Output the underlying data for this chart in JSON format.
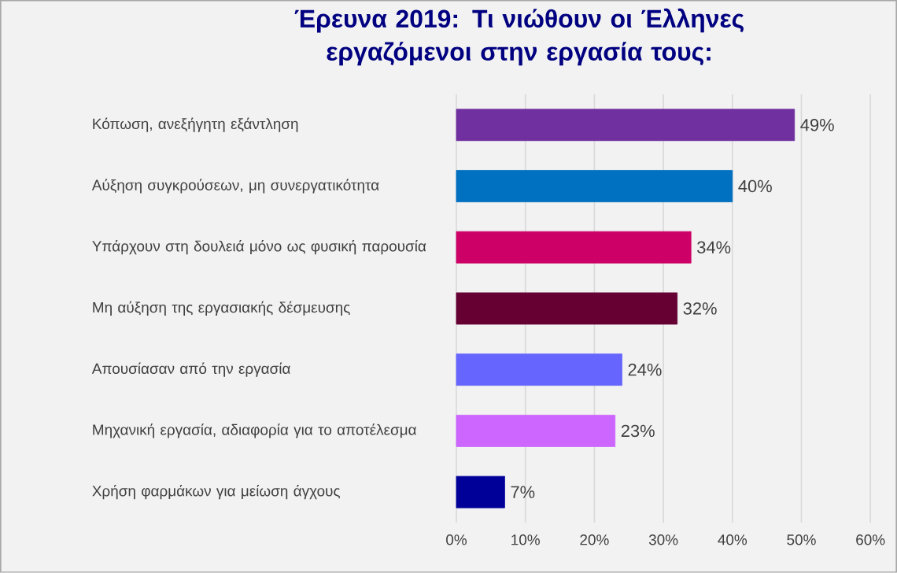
{
  "chart_data": {
    "type": "bar",
    "orientation": "horizontal",
    "title": "Έρευνα 2019:  Τι νιώθουν οι  Έλληνες εργαζόμενοι  στην εργασία τους:",
    "categories": [
      "Κόπωση, ανεξήγητη εξάντληση",
      "Αύξηση συγκρούσεων, μη συνεργατικότητα",
      "Υπάρχουν στη δουλειά μόνο ως φυσική παρουσία",
      "Μη αύξηση της εργασιακής δέσμευσης",
      "Απουσίασαν από την εργασία",
      "Μηχανική εργασία, αδιαφορία για το αποτέλεσμα",
      "Χρήση φαρμάκων για μείωση άγχους"
    ],
    "values": [
      49,
      40,
      34,
      32,
      24,
      23,
      7
    ],
    "value_labels": [
      "49%",
      "40%",
      "34%",
      "32%",
      "24%",
      "23%",
      "7%"
    ],
    "colors": [
      "#7030a0",
      "#0070c0",
      "#cc0066",
      "#660033",
      "#6666ff",
      "#cc66ff",
      "#000099"
    ],
    "xlim": [
      0,
      60
    ],
    "xticks": [
      {
        "value": 0,
        "label": "0%"
      },
      {
        "value": 10,
        "label": "10%"
      },
      {
        "value": 20,
        "label": "20%"
      },
      {
        "value": 30,
        "label": "30%"
      },
      {
        "value": 40,
        "label": "40%"
      },
      {
        "value": 50,
        "label": "50%"
      },
      {
        "value": 60,
        "label": "60%"
      }
    ],
    "grid": "x"
  }
}
